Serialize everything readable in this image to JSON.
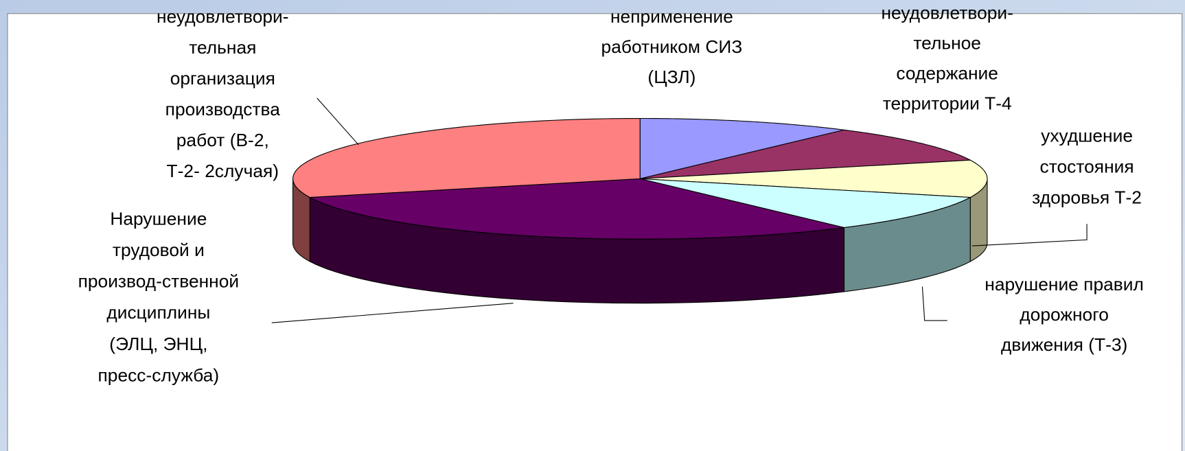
{
  "chart_data": {
    "type": "pie3d",
    "categories": [
      "неприменение\nработником СИЗ\n(ЦЗЛ)",
      "неудовлетвори-\nтельное\nсодержание\nтерритории Т-4",
      "ухудшение\nстостояния\nздоровья Т-2",
      "нарушение правил\nдорожного\nдвижения (Т-3)",
      "Нарушение\nтрудовой и\nпроизвод-ственной\nдисциплины\n(ЭЛЦ, ЭНЦ,\nпресс-служба)",
      "неудовлетвори-\nтельная\nорганизация\nпроизводства\nработ (В-2,\nТ-2- 2случая)"
    ],
    "values": [
      1,
      1,
      1,
      1,
      3,
      3
    ],
    "colors": [
      "#9999ff",
      "#993366",
      "#ffffcc",
      "#ccffff",
      "#660066",
      "#ff8080"
    ],
    "side_colors": [
      "#5c5c99",
      "#5c1f3d",
      "#99997a",
      "#6b8c8c",
      "#330033",
      "#804040"
    ]
  }
}
